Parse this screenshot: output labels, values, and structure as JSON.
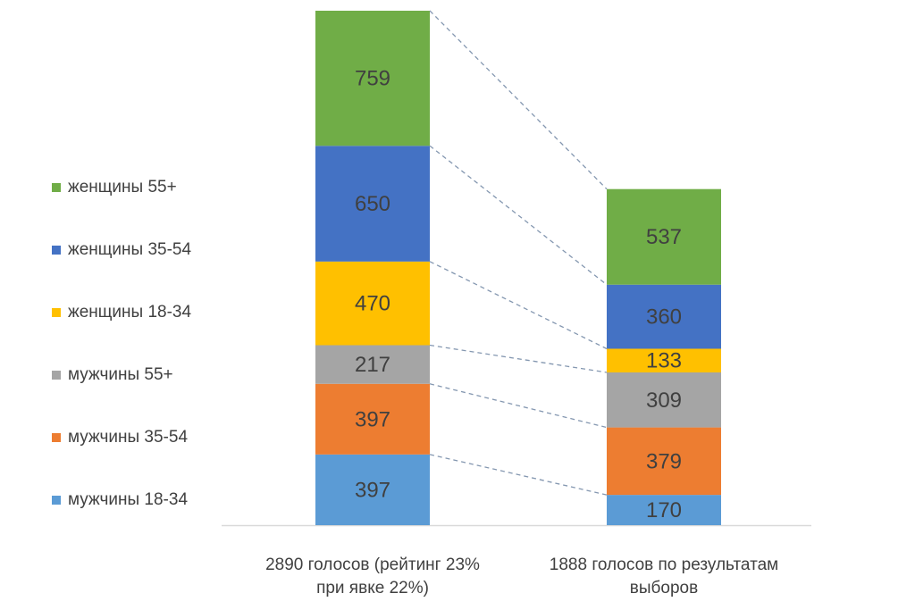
{
  "chart_data": {
    "type": "bar",
    "stacked": true,
    "categories": [
      "2890  голосов (рейтинг 23%\nпри явке 22%)",
      "1888  голосов  по результатам\nвыборов"
    ],
    "totals": [
      2890,
      1888
    ],
    "series": [
      {
        "name": "мужчины 18-34",
        "color": "#5b9bd5",
        "values": [
          397,
          170
        ]
      },
      {
        "name": "мужчины  35-54",
        "color": "#ed7d31",
        "values": [
          397,
          379
        ]
      },
      {
        "name": "мужчины  55+",
        "color": "#a5a5a5",
        "values": [
          217,
          309
        ]
      },
      {
        "name": "женщины 18-34",
        "color": "#ffc000",
        "values": [
          470,
          133
        ]
      },
      {
        "name": "женщины 35-54",
        "color": "#4472c4",
        "values": [
          650,
          360
        ]
      },
      {
        "name": "женщины 55+",
        "color": "#70ad47",
        "values": [
          759,
          537
        ]
      }
    ],
    "data_labels": true,
    "connector_lines": "dashed",
    "legend_position": "left",
    "title": "",
    "xlabel": "",
    "ylabel": ""
  }
}
